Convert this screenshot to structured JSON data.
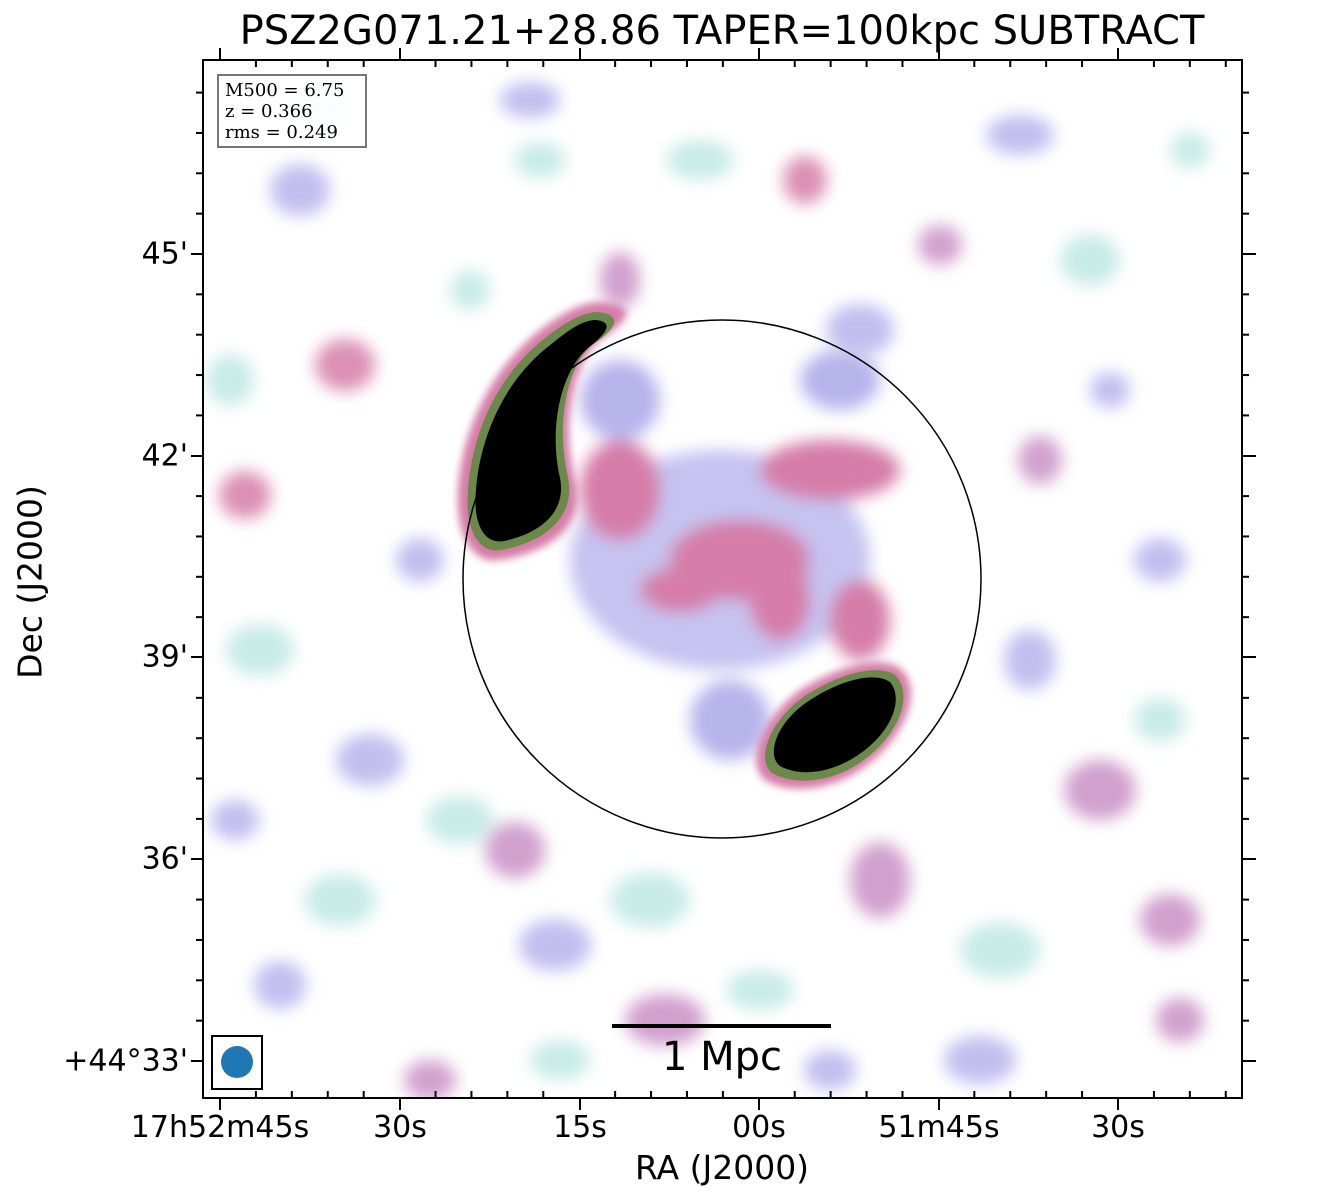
{
  "title": "PSZ2G071.21+28.86 TAPER=100kpc SUBTRACT",
  "info": {
    "m500": "M500 = 6.75",
    "z": "z = 0.366",
    "rms": "rms = 0.249"
  },
  "axes": {
    "ylabel": "Dec (J2000)",
    "xlabel": "RA (J2000)",
    "yticks": [
      "45'",
      "42'",
      "39'",
      "36'",
      "+44°33'"
    ],
    "xticks": [
      "17h52m45s",
      "30s",
      "15s",
      "00s",
      "51m45s",
      "30s"
    ]
  },
  "scalebar": {
    "label": "1 Mpc"
  },
  "colors": {
    "frame": "#000000",
    "beam": "#1f77b4",
    "emission_low": "#bfe8e4",
    "emission_mid": "#b8b4ec",
    "emission_high": "#d57da8",
    "emission_peak": "#000000"
  }
}
